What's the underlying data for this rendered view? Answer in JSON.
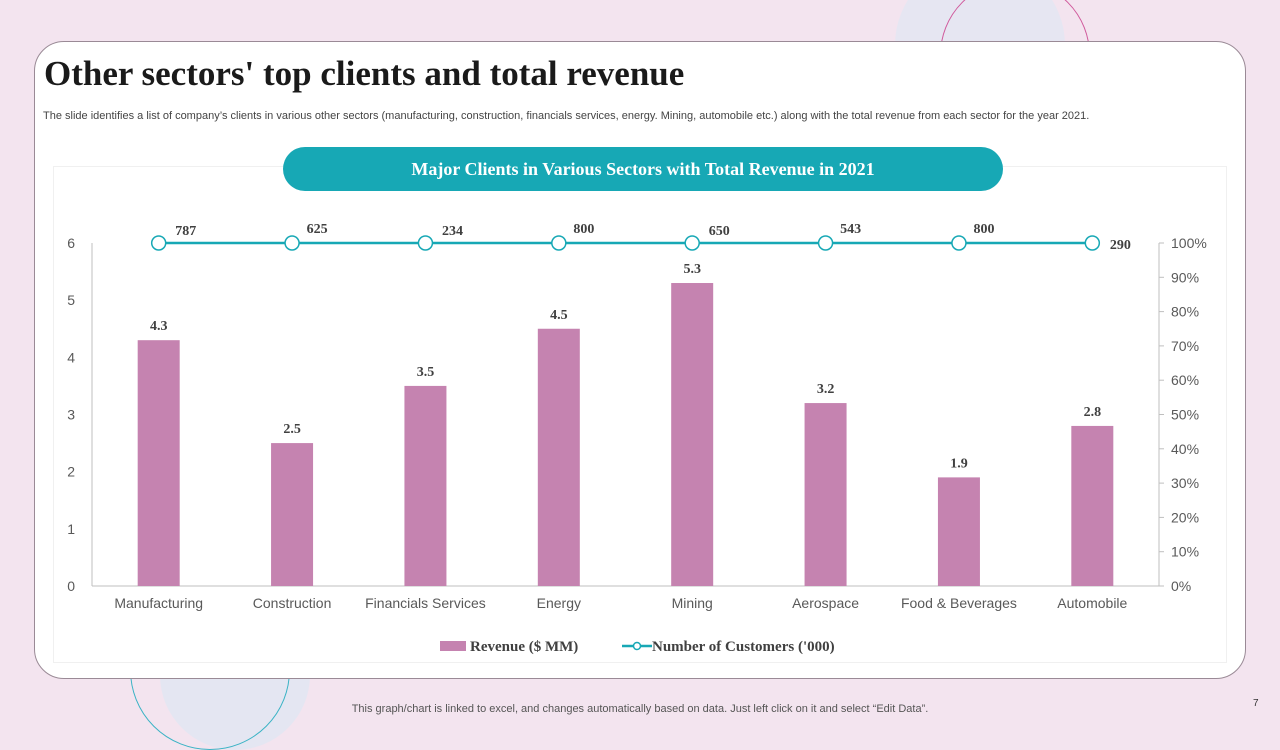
{
  "slide": {
    "title": "Other sectors' top clients and total revenue",
    "subtitle": "The slide identifies a list of company’s clients in various other sectors (manufacturing, construction, financials services, energy. Mining, automobile etc.) along with the total revenue from each sector for the year 2021.",
    "footer_note": "This graph/chart is linked to excel,  and changes automatically based on data. Just left click on it and select “Edit Data”.",
    "page_number": "7"
  },
  "colors": {
    "background": "#f3e4ef",
    "bar": "#c583b0",
    "line": "#17a8b5",
    "banner": "#17a8b5"
  },
  "chart_data": {
    "type": "bar",
    "title": "Major Clients in Various Sectors with Total Revenue in 2021",
    "categories": [
      "Manufacturing",
      "Construction",
      "Financials Services",
      "Energy",
      "Mining",
      "Aerospace",
      "Food & Beverages",
      "Automobile"
    ],
    "series": [
      {
        "name": "Revenue ($ MM)",
        "type": "bar",
        "axis": "left",
        "values": [
          4.3,
          2.5,
          3.5,
          4.5,
          5.3,
          3.2,
          1.9,
          2.8
        ]
      },
      {
        "name": "Number of Customers ('000)",
        "type": "line",
        "axis": "right",
        "values": [
          1.0,
          1.0,
          1.0,
          1.0,
          1.0,
          1.0,
          1.0,
          1.0
        ],
        "labels": [
          "787",
          "625",
          "234",
          "800",
          "650",
          "543",
          "800",
          "290"
        ]
      }
    ],
    "left_axis": {
      "min": 0,
      "max": 6,
      "ticks": [
        "0",
        "1",
        "2",
        "3",
        "4",
        "5",
        "6"
      ]
    },
    "right_axis": {
      "min": 0,
      "max": 1,
      "ticks": [
        "0%",
        "10%",
        "20%",
        "30%",
        "40%",
        "50%",
        "60%",
        "70%",
        "80%",
        "90%",
        "100%"
      ]
    },
    "grid": false,
    "legend_position": "bottom"
  }
}
